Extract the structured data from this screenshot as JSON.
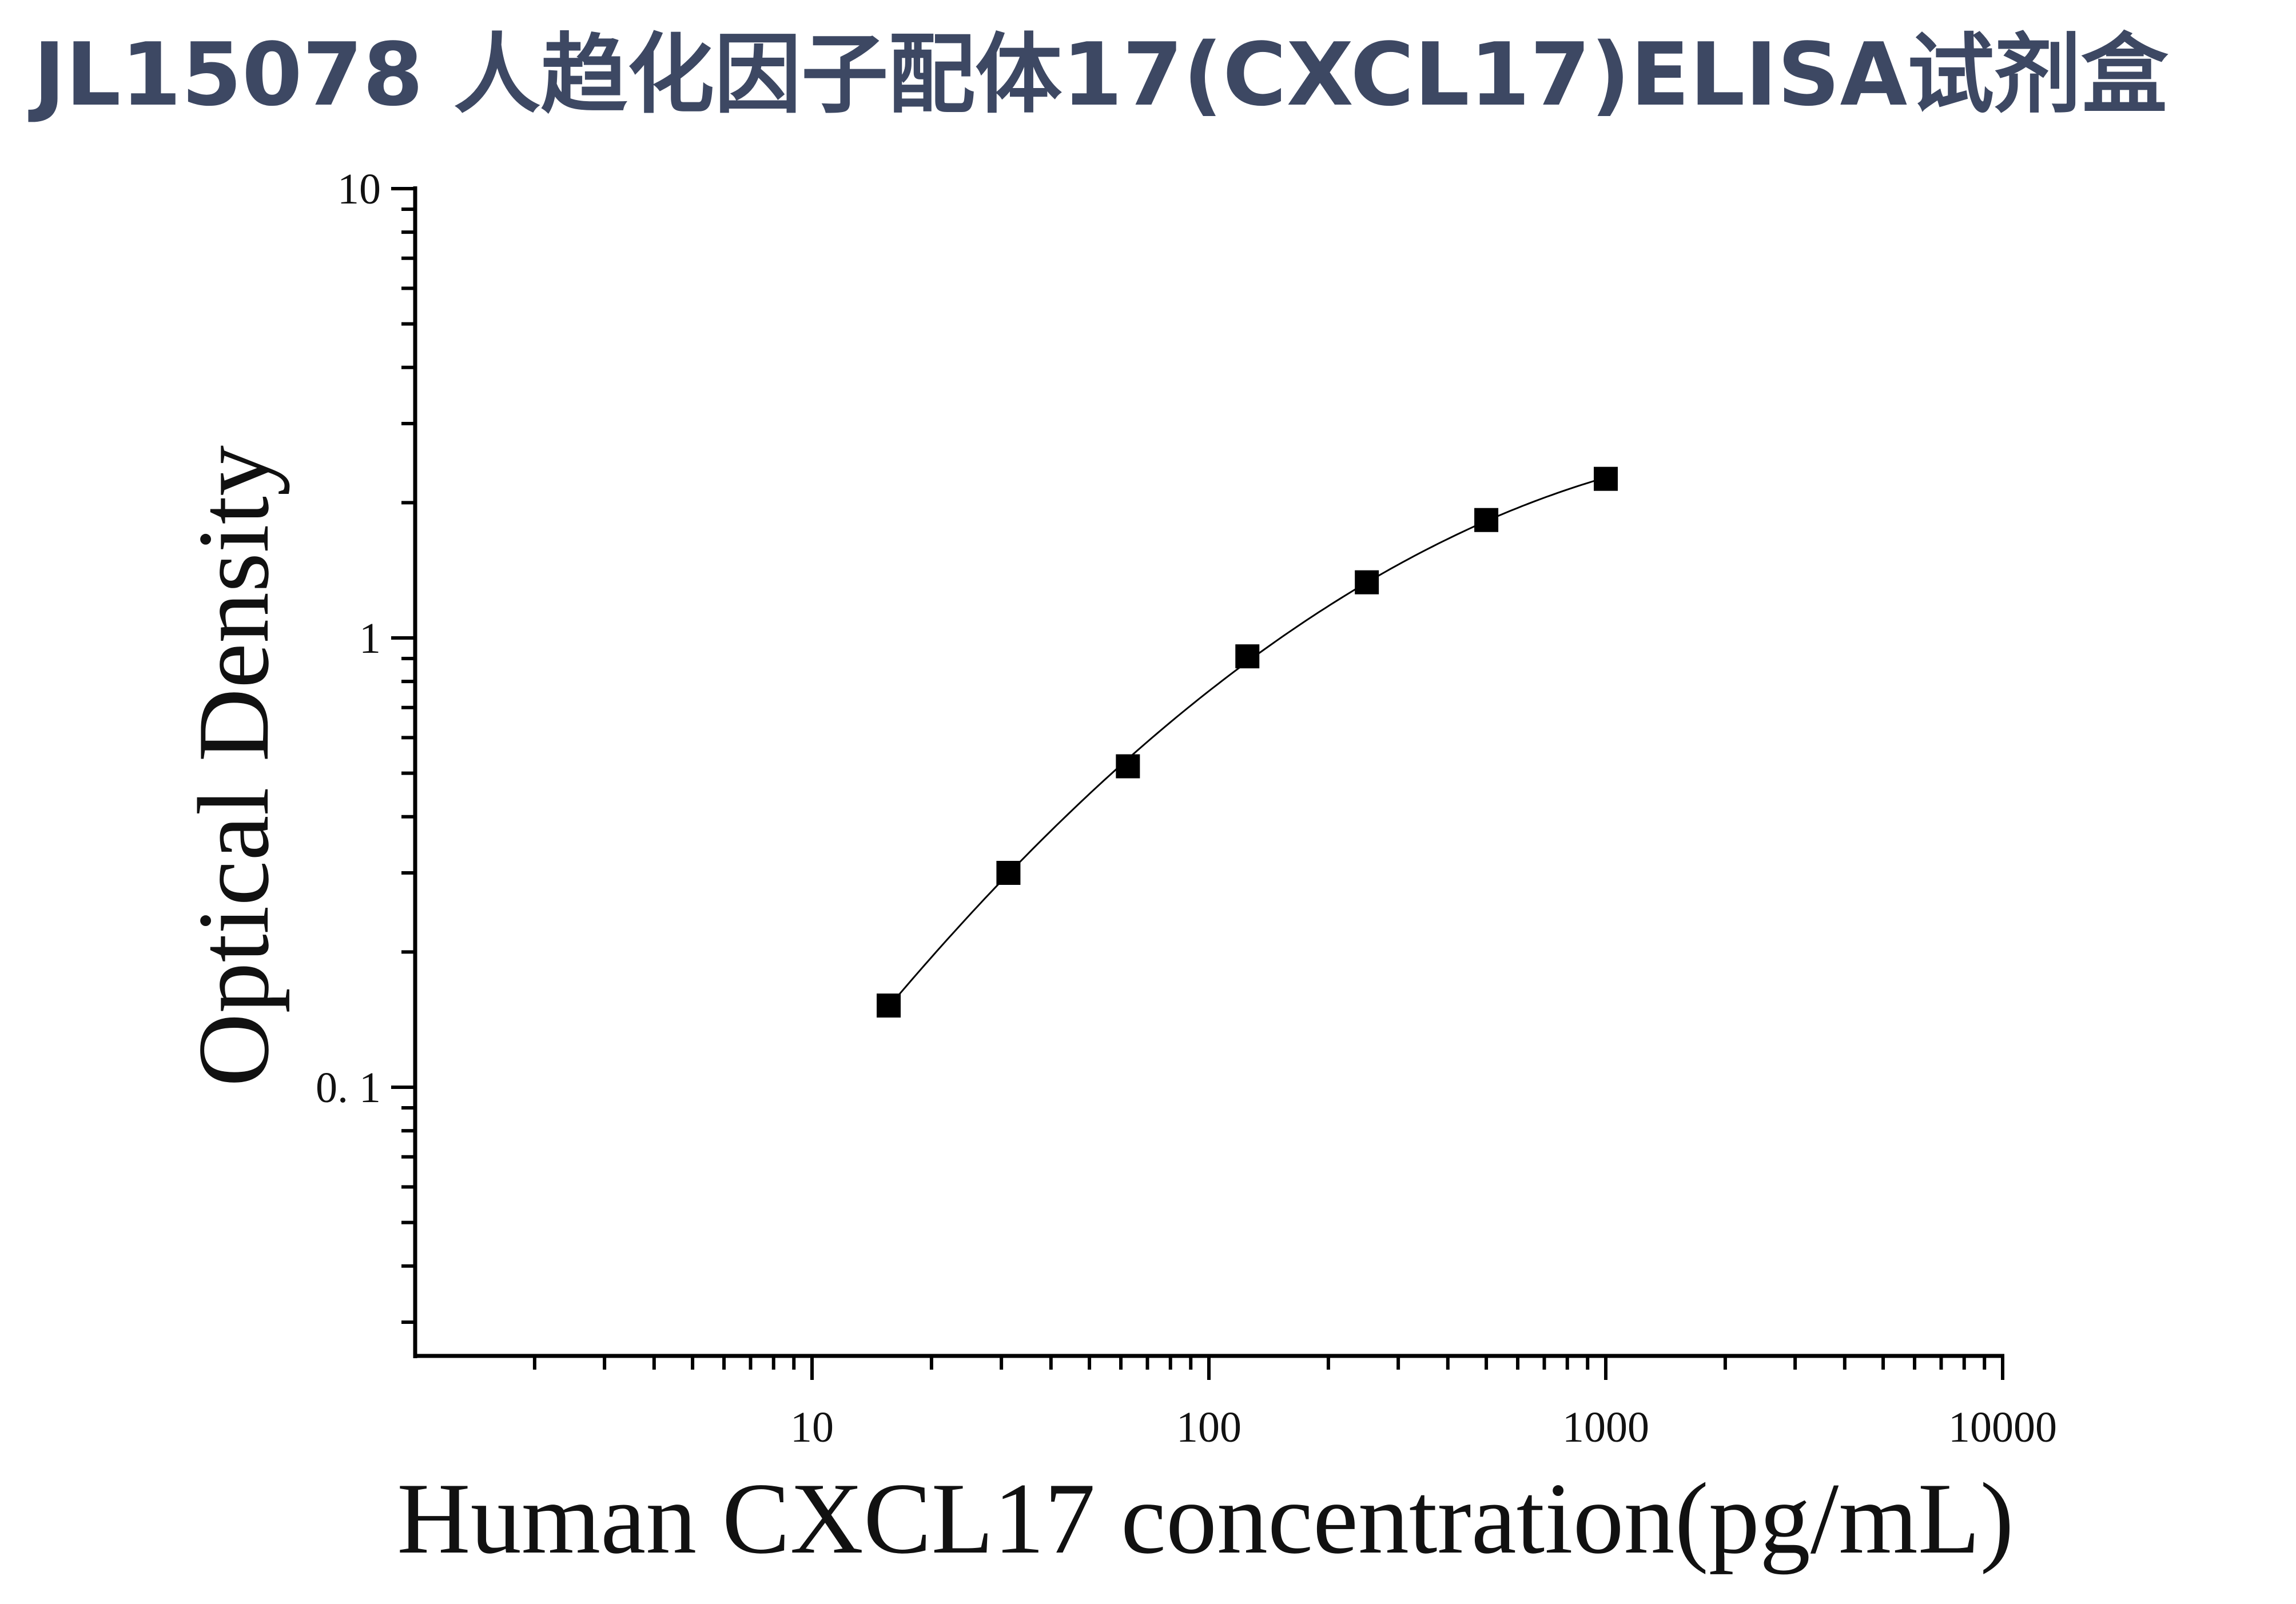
{
  "page": {
    "title": "JL15078 人趋化因子配体17(CXCL17)ELISA试剂盒"
  },
  "chart_data": {
    "type": "scatter",
    "title": "",
    "xlabel": "Human CXCL17 concentration(pg/mL)",
    "ylabel": "Optical Density",
    "x_scale": "log",
    "y_scale": "log",
    "xlim": [
      1,
      10000
    ],
    "ylim": [
      0.03,
      10
    ],
    "x_ticks": [
      {
        "value": 10,
        "label": "10"
      },
      {
        "value": 100,
        "label": "100"
      },
      {
        "value": 1000,
        "label": "1000"
      },
      {
        "value": 10000,
        "label": "10000"
      }
    ],
    "y_ticks": [
      {
        "value": 0.1,
        "label": "0. 1"
      },
      {
        "value": 1,
        "label": "1"
      },
      {
        "value": 10,
        "label": "10"
      }
    ],
    "grid": false,
    "legend": "none",
    "series": [
      {
        "x": [
          15.6,
          31.25,
          62.5,
          125,
          250,
          500,
          1000
        ],
        "y": [
          0.152,
          0.3,
          0.518,
          0.91,
          1.33,
          1.83,
          2.26
        ],
        "marker": "square",
        "color": "#000000",
        "fit_curve": true
      }
    ]
  }
}
